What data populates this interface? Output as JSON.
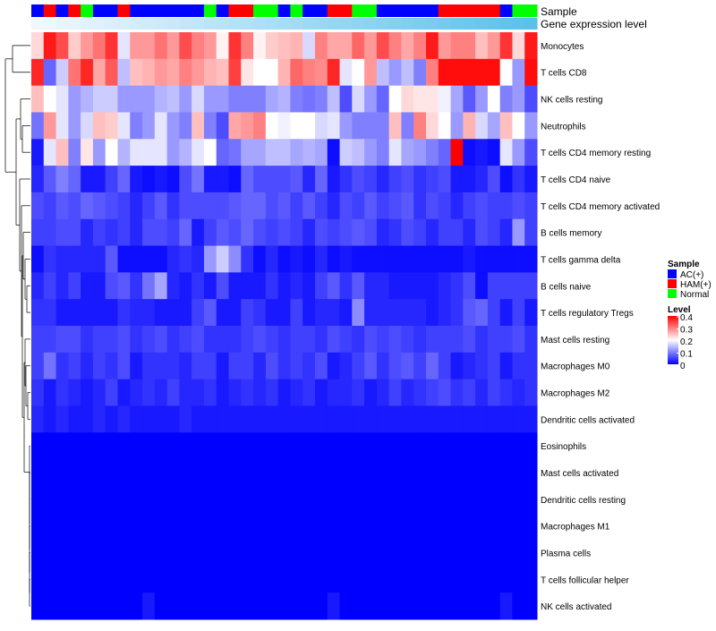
{
  "chart_data": {
    "type": "heatmap",
    "annotation_tracks": [
      "Sample",
      "Gene expression level"
    ],
    "rows": [
      "Monocytes",
      "T cells CD8",
      "NK cells resting",
      "Neutrophils",
      "T cells CD4 memory resting",
      "T cells CD4 naive",
      "T cells CD4 memory activated",
      "B cells memory",
      "T cells gamma delta",
      "B cells naive",
      "T cells regulatory  Tregs",
      "Mast cells resting",
      "Macrophages M0",
      "Macrophages M2",
      "Dendritic cells activated",
      "Eosinophils",
      "Mast cells activated",
      "Dendritic cells resting",
      "Macrophages M1",
      "Plasma cells",
      "T cells follicular helper",
      "NK cells activated"
    ],
    "sample_groups": [
      "AC",
      "HAM",
      "AC",
      "HAM",
      "Normal",
      "AC",
      "AC",
      "HAM",
      "AC",
      "AC",
      "AC",
      "AC",
      "AC",
      "AC",
      "Normal",
      "AC",
      "HAM",
      "HAM",
      "Normal",
      "Normal",
      "AC",
      "Normal",
      "AC",
      "AC",
      "HAM",
      "HAM",
      "Normal",
      "Normal",
      "AC",
      "AC",
      "AC",
      "AC",
      "AC",
      "HAM",
      "HAM",
      "HAM",
      "HAM",
      "HAM",
      "AC",
      "Normal",
      "Normal"
    ],
    "gene_expression_level": [
      0.0,
      0.02,
      0.05,
      0.07,
      0.1,
      0.12,
      0.15,
      0.17,
      0.2,
      0.22,
      0.25,
      0.27,
      0.3,
      0.32,
      0.35,
      0.37,
      0.4,
      0.42,
      0.45,
      0.47,
      0.5,
      0.52,
      0.55,
      0.57,
      0.6,
      0.62,
      0.65,
      0.67,
      0.7,
      0.72,
      0.75,
      0.77,
      0.8,
      0.82,
      0.85,
      0.87,
      0.9,
      0.92,
      0.95,
      0.97,
      1.0
    ],
    "values": [
      [
        0.23,
        0.38,
        0.34,
        0.24,
        0.28,
        0.31,
        0.36,
        0.18,
        0.28,
        0.28,
        0.31,
        0.28,
        0.34,
        0.3,
        0.28,
        0.21,
        0.36,
        0.3,
        0.21,
        0.24,
        0.25,
        0.26,
        0.17,
        0.3,
        0.27,
        0.27,
        0.32,
        0.28,
        0.34,
        0.3,
        0.27,
        0.3,
        0.38,
        0.28,
        0.3,
        0.3,
        0.25,
        0.28,
        0.36,
        0.23,
        0.38
      ],
      [
        0.37,
        0.08,
        0.16,
        0.31,
        0.37,
        0.27,
        0.33,
        0.15,
        0.25,
        0.26,
        0.28,
        0.27,
        0.3,
        0.28,
        0.26,
        0.25,
        0.35,
        0.22,
        0.2,
        0.2,
        0.26,
        0.32,
        0.3,
        0.29,
        0.37,
        0.18,
        0.2,
        0.28,
        0.15,
        0.12,
        0.15,
        0.1,
        0.3,
        0.39,
        0.39,
        0.39,
        0.39,
        0.39,
        0.2,
        0.12,
        0.39
      ],
      [
        0.25,
        0.2,
        0.18,
        0.12,
        0.14,
        0.16,
        0.16,
        0.12,
        0.12,
        0.12,
        0.14,
        0.15,
        0.12,
        0.17,
        0.12,
        0.12,
        0.1,
        0.1,
        0.1,
        0.13,
        0.14,
        0.1,
        0.09,
        0.1,
        0.15,
        0.06,
        0.17,
        0.12,
        0.08,
        0.2,
        0.23,
        0.22,
        0.22,
        0.19,
        0.13,
        0.07,
        0.12,
        0.2,
        0.1,
        0.12,
        0.06
      ],
      [
        0.09,
        0.28,
        0.18,
        0.12,
        0.17,
        0.25,
        0.24,
        0.18,
        0.1,
        0.12,
        0.18,
        0.12,
        0.1,
        0.25,
        0.1,
        0.06,
        0.27,
        0.28,
        0.3,
        0.2,
        0.19,
        0.2,
        0.2,
        0.17,
        0.18,
        0.12,
        0.1,
        0.1,
        0.1,
        0.25,
        0.1,
        0.3,
        0.23,
        0.2,
        0.12,
        0.26,
        0.17,
        0.13,
        0.25,
        0.2,
        0.12
      ],
      [
        0.02,
        0.18,
        0.25,
        0.1,
        0.22,
        0.12,
        0.2,
        0.14,
        0.18,
        0.18,
        0.18,
        0.12,
        0.14,
        0.18,
        0.2,
        0.08,
        0.09,
        0.13,
        0.13,
        0.15,
        0.15,
        0.13,
        0.14,
        0.13,
        0.01,
        0.16,
        0.15,
        0.12,
        0.1,
        0.18,
        0.13,
        0.12,
        0.1,
        0.08,
        0.4,
        0.01,
        0.02,
        0.01,
        0.18,
        0.12,
        0.06
      ],
      [
        0.03,
        0.07,
        0.1,
        0.08,
        0.02,
        0.02,
        0.05,
        0.08,
        0.02,
        0.01,
        0.02,
        0.01,
        0.06,
        0.09,
        0.02,
        0.02,
        0.01,
        0.08,
        0.06,
        0.06,
        0.06,
        0.07,
        0.03,
        0.08,
        0.02,
        0.04,
        0.06,
        0.05,
        0.03,
        0.05,
        0.06,
        0.04,
        0.05,
        0.06,
        0.02,
        0.02,
        0.03,
        0.06,
        0.01,
        0.04,
        0.02
      ],
      [
        0.06,
        0.05,
        0.07,
        0.06,
        0.08,
        0.07,
        0.06,
        0.05,
        0.03,
        0.05,
        0.07,
        0.04,
        0.06,
        0.06,
        0.06,
        0.06,
        0.07,
        0.08,
        0.08,
        0.06,
        0.07,
        0.05,
        0.07,
        0.05,
        0.03,
        0.06,
        0.05,
        0.07,
        0.05,
        0.06,
        0.07,
        0.04,
        0.06,
        0.05,
        0.03,
        0.05,
        0.06,
        0.05,
        0.05,
        0.06,
        0.05
      ],
      [
        0.05,
        0.05,
        0.06,
        0.06,
        0.03,
        0.05,
        0.04,
        0.05,
        0.03,
        0.06,
        0.06,
        0.05,
        0.08,
        0.02,
        0.05,
        0.07,
        0.06,
        0.08,
        0.06,
        0.05,
        0.06,
        0.05,
        0.03,
        0.06,
        0.05,
        0.06,
        0.07,
        0.06,
        0.03,
        0.04,
        0.06,
        0.05,
        0.03,
        0.05,
        0.05,
        0.03,
        0.06,
        0.05,
        0.03,
        0.12,
        0.05
      ],
      [
        0.01,
        0.04,
        0.03,
        0.03,
        0.03,
        0.03,
        0.07,
        0.01,
        0.01,
        0.01,
        0.01,
        0.03,
        0.04,
        0.03,
        0.12,
        0.16,
        0.11,
        0.04,
        0.01,
        0.03,
        0.01,
        0.02,
        0.01,
        0.03,
        0.01,
        0.02,
        0.01,
        0.01,
        0.01,
        0.01,
        0.01,
        0.01,
        0.01,
        0.01,
        0.01,
        0.02,
        0.01,
        0.01,
        0.01,
        0.01,
        0.01
      ],
      [
        0.03,
        0.05,
        0.03,
        0.05,
        0.02,
        0.02,
        0.06,
        0.07,
        0.04,
        0.09,
        0.13,
        0.03,
        0.02,
        0.04,
        0.02,
        0.06,
        0.02,
        0.02,
        0.02,
        0.04,
        0.02,
        0.03,
        0.02,
        0.05,
        0.07,
        0.04,
        0.07,
        0.03,
        0.03,
        0.02,
        0.02,
        0.02,
        0.02,
        0.03,
        0.04,
        0.06,
        0.01,
        0.05,
        0.05,
        0.05,
        0.05
      ],
      [
        0.04,
        0.04,
        0.02,
        0.02,
        0.02,
        0.02,
        0.02,
        0.04,
        0.03,
        0.03,
        0.02,
        0.02,
        0.02,
        0.05,
        0.07,
        0.02,
        0.02,
        0.05,
        0.04,
        0.02,
        0.02,
        0.05,
        0.02,
        0.03,
        0.03,
        0.02,
        0.11,
        0.03,
        0.03,
        0.03,
        0.03,
        0.03,
        0.02,
        0.03,
        0.04,
        0.07,
        0.08,
        0.05,
        0.02,
        0.05,
        0.02
      ],
      [
        0.05,
        0.05,
        0.06,
        0.06,
        0.04,
        0.05,
        0.05,
        0.06,
        0.04,
        0.05,
        0.06,
        0.04,
        0.05,
        0.06,
        0.04,
        0.04,
        0.04,
        0.05,
        0.06,
        0.05,
        0.04,
        0.05,
        0.05,
        0.04,
        0.06,
        0.05,
        0.04,
        0.06,
        0.05,
        0.06,
        0.05,
        0.04,
        0.05,
        0.05,
        0.05,
        0.06,
        0.04,
        0.05,
        0.05,
        0.06,
        0.04
      ],
      [
        0.05,
        0.09,
        0.04,
        0.05,
        0.03,
        0.05,
        0.04,
        0.06,
        0.02,
        0.04,
        0.04,
        0.04,
        0.03,
        0.05,
        0.05,
        0.02,
        0.05,
        0.05,
        0.03,
        0.06,
        0.04,
        0.05,
        0.04,
        0.06,
        0.02,
        0.03,
        0.05,
        0.07,
        0.04,
        0.06,
        0.07,
        0.05,
        0.08,
        0.05,
        0.02,
        0.03,
        0.04,
        0.05,
        0.02,
        0.04,
        0.04
      ],
      [
        0.04,
        0.02,
        0.04,
        0.03,
        0.02,
        0.03,
        0.05,
        0.02,
        0.03,
        0.04,
        0.03,
        0.05,
        0.03,
        0.03,
        0.04,
        0.02,
        0.03,
        0.04,
        0.03,
        0.04,
        0.02,
        0.03,
        0.04,
        0.02,
        0.03,
        0.03,
        0.04,
        0.02,
        0.03,
        0.05,
        0.03,
        0.04,
        0.05,
        0.06,
        0.04,
        0.05,
        0.03,
        0.05,
        0.04,
        0.03,
        0.04
      ],
      [
        0.03,
        0.02,
        0.03,
        0.02,
        0.02,
        0.03,
        0.02,
        0.03,
        0.02,
        0.02,
        0.02,
        0.02,
        0.03,
        0.02,
        0.02,
        0.02,
        0.02,
        0.02,
        0.02,
        0.02,
        0.02,
        0.02,
        0.02,
        0.02,
        0.02,
        0.02,
        0.02,
        0.02,
        0.02,
        0.02,
        0.02,
        0.02,
        0.02,
        0.02,
        0.02,
        0.02,
        0.02,
        0.02,
        0.02,
        0.02,
        0.02
      ],
      [
        0,
        0,
        0,
        0,
        0,
        0,
        0,
        0,
        0,
        0,
        0,
        0,
        0,
        0,
        0,
        0,
        0,
        0,
        0,
        0,
        0,
        0,
        0,
        0,
        0,
        0,
        0,
        0,
        0,
        0,
        0,
        0,
        0,
        0,
        0,
        0,
        0,
        0,
        0,
        0,
        0
      ],
      [
        0,
        0,
        0,
        0,
        0,
        0,
        0,
        0,
        0,
        0,
        0,
        0,
        0,
        0,
        0,
        0,
        0,
        0,
        0,
        0,
        0,
        0,
        0,
        0,
        0,
        0,
        0,
        0,
        0,
        0,
        0,
        0,
        0,
        0,
        0,
        0,
        0,
        0,
        0,
        0,
        0
      ],
      [
        0,
        0,
        0,
        0,
        0,
        0,
        0,
        0,
        0,
        0,
        0,
        0,
        0,
        0,
        0,
        0,
        0,
        0,
        0,
        0,
        0,
        0,
        0,
        0,
        0,
        0,
        0,
        0,
        0,
        0,
        0,
        0,
        0,
        0,
        0,
        0,
        0,
        0,
        0,
        0,
        0
      ],
      [
        0,
        0,
        0,
        0,
        0,
        0,
        0,
        0,
        0,
        0,
        0,
        0,
        0,
        0,
        0,
        0,
        0,
        0,
        0,
        0,
        0,
        0,
        0,
        0,
        0,
        0,
        0,
        0,
        0,
        0,
        0,
        0,
        0,
        0,
        0,
        0,
        0,
        0,
        0,
        0,
        0
      ],
      [
        0,
        0,
        0,
        0,
        0,
        0,
        0,
        0,
        0,
        0,
        0,
        0,
        0,
        0,
        0,
        0,
        0,
        0,
        0,
        0,
        0,
        0,
        0,
        0,
        0,
        0,
        0,
        0,
        0,
        0,
        0,
        0,
        0,
        0,
        0,
        0,
        0,
        0,
        0,
        0,
        0
      ],
      [
        0,
        0,
        0,
        0,
        0,
        0,
        0,
        0,
        0,
        0,
        0,
        0,
        0,
        0,
        0,
        0,
        0,
        0,
        0,
        0,
        0,
        0,
        0,
        0,
        0,
        0,
        0,
        0,
        0,
        0,
        0,
        0,
        0,
        0,
        0,
        0,
        0,
        0,
        0,
        0,
        0
      ],
      [
        0,
        0,
        0,
        0,
        0,
        0,
        0,
        0,
        0,
        0.02,
        0,
        0,
        0,
        0,
        0,
        0,
        0,
        0,
        0,
        0,
        0,
        0,
        0,
        0,
        0.02,
        0,
        0,
        0,
        0,
        0,
        0,
        0,
        0,
        0,
        0,
        0,
        0,
        0,
        0.02,
        0,
        0
      ]
    ],
    "color_scale": {
      "min": 0,
      "max": 0.4,
      "low": "#0000ff",
      "mid": "#ffffff",
      "high": "#ff0000"
    },
    "legend": {
      "sample_title": "Sample",
      "sample_items": [
        {
          "key": "AC",
          "label": "AC(+)",
          "color": "#0000ff"
        },
        {
          "key": "HAM",
          "label": "HAM(+)",
          "color": "#ff0000"
        },
        {
          "key": "Normal",
          "label": "Normal",
          "color": "#00ff00"
        }
      ],
      "level_title": "Level",
      "level_ticks": [
        "0.4",
        "0.3",
        "0.2",
        "0.1",
        "0"
      ]
    },
    "gene_expr_colors": {
      "low": "#f0f8ff",
      "high": "#5bc0eb"
    }
  }
}
